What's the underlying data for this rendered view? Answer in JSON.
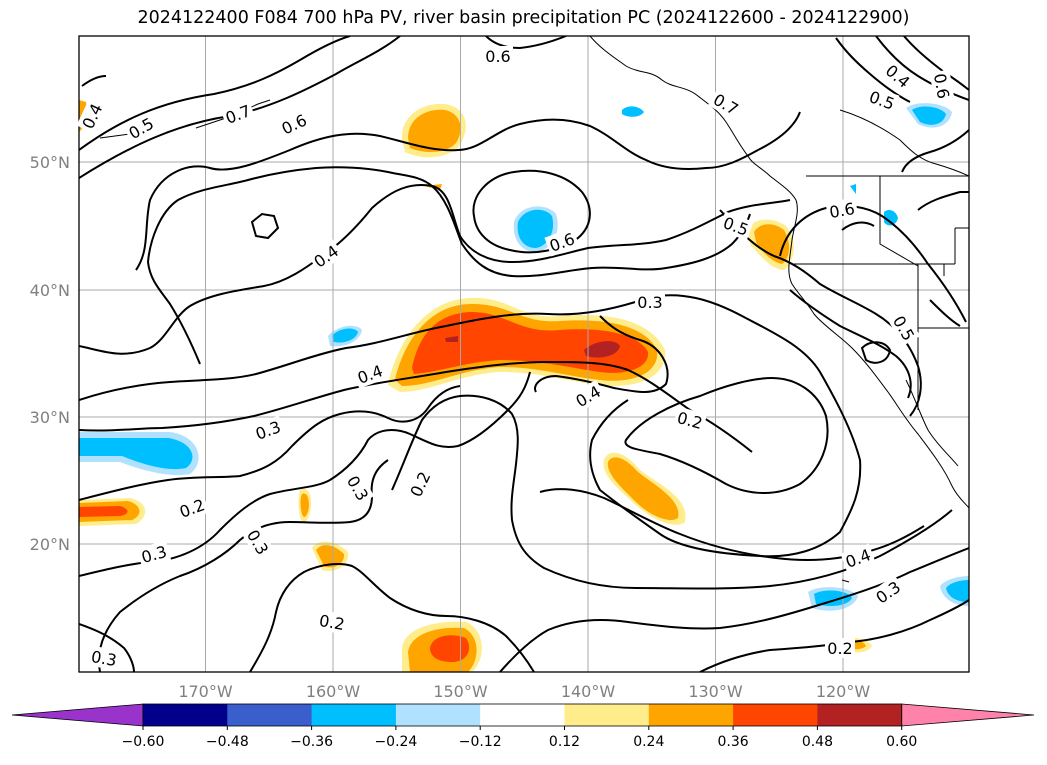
{
  "title": "2024122400 F084 700 hPa PV, river basin precipitation PC (2024122600 - 2024122900)",
  "lat_labels": [
    "50°N",
    "40°N",
    "30°N",
    "20°N"
  ],
  "lon_labels": [
    "170°W",
    "160°W",
    "150°W",
    "140°W",
    "130°W",
    "120°W"
  ],
  "contour_labels": [
    "0.4",
    "0.5",
    "0.7",
    "0.6",
    "0.6",
    "0.4",
    "0.6",
    "0.5",
    "0.7",
    "0.4",
    "0.6",
    "0.5",
    "0.6",
    "0.3",
    "0.5",
    "0.4",
    "0.4",
    "0.3",
    "0.2",
    "0.3",
    "0.2",
    "0.2",
    "0.3",
    "0.3",
    "0.2",
    "0.4",
    "0.3",
    "0.2",
    "0.3"
  ],
  "colorbar": {
    "tick_labels": [
      "−0.60",
      "−0.48",
      "−0.36",
      "−0.24",
      "−0.12",
      "0.12",
      "0.24",
      "0.36",
      "0.48",
      "0.60"
    ],
    "colors": [
      "#9933cc",
      "#00008b",
      "#3a5fcd",
      "#00bfff",
      "#b0e2ff",
      "#ffffff",
      "#ffec8b",
      "#ffa500",
      "#ff4500",
      "#b22222",
      "#ff82ab"
    ]
  },
  "fill_colors": {
    "light_yellow": "#ffec8b",
    "orange": "#ffa500",
    "red_orange": "#ff4500",
    "dark_red": "#b22222",
    "light_blue": "#b0e2ff",
    "sky_blue": "#00bfff"
  }
}
